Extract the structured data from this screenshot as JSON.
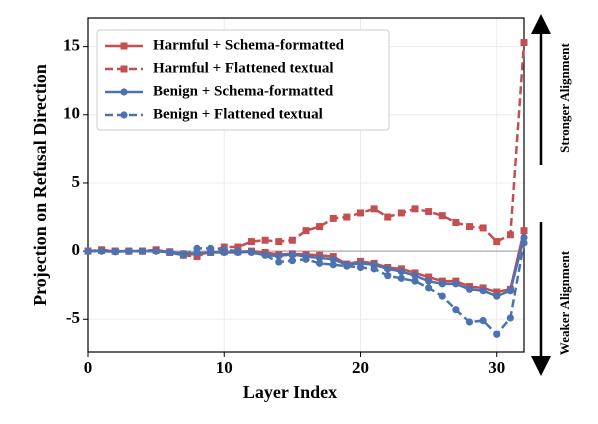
{
  "chart_data": {
    "type": "line",
    "xlabel": "Layer Index",
    "ylabel": "Projection on Refusal Direction",
    "annotations": [
      "Stronger Alignment",
      "Weaker Alignment"
    ],
    "x": [
      0,
      1,
      2,
      3,
      4,
      5,
      6,
      7,
      8,
      9,
      10,
      11,
      12,
      13,
      14,
      15,
      16,
      17,
      18,
      19,
      20,
      21,
      22,
      23,
      24,
      25,
      26,
      27,
      28,
      29,
      30,
      31,
      32
    ],
    "series": [
      {
        "name": "Harmful + Schema-formatted",
        "color": "#c44e52",
        "dashed": false,
        "marker": "square",
        "values": [
          0,
          0.05,
          0,
          0,
          0,
          0.05,
          -0.05,
          -0.2,
          -0.25,
          -0.1,
          -0.05,
          -0.05,
          0,
          -0.1,
          -0.25,
          -0.2,
          -0.25,
          -0.3,
          -0.4,
          -0.95,
          -0.75,
          -0.9,
          -1.2,
          -1.3,
          -1.6,
          -1.9,
          -2.2,
          -2.2,
          -2.6,
          -2.7,
          -3.0,
          -2.8,
          1.5
        ]
      },
      {
        "name": "Harmful + Flattened textual",
        "color": "#c44e52",
        "dashed": true,
        "marker": "square",
        "values": [
          0,
          0.1,
          0,
          0,
          0,
          0.1,
          -0.1,
          -0.3,
          -0.4,
          0,
          0.3,
          0.3,
          0.7,
          0.8,
          0.7,
          0.8,
          1.5,
          1.8,
          2.4,
          2.5,
          2.8,
          3.1,
          2.5,
          2.8,
          3.1,
          2.9,
          2.6,
          2.1,
          1.8,
          1.7,
          0.7,
          1.2,
          15.3
        ]
      },
      {
        "name": "Benign + Schema-formatted",
        "color": "#4c72b0",
        "dashed": false,
        "marker": "circle",
        "values": [
          0,
          0,
          -0.05,
          0,
          0,
          0,
          -0.05,
          -0.2,
          -0.15,
          -0.1,
          -0.1,
          -0.1,
          -0.05,
          -0.3,
          -0.35,
          -0.25,
          -0.4,
          -0.5,
          -0.6,
          -1.0,
          -0.9,
          -1.0,
          -1.3,
          -1.5,
          -1.8,
          -2.2,
          -2.4,
          -2.4,
          -2.8,
          -2.9,
          -3.3,
          -2.9,
          1.0
        ]
      },
      {
        "name": "Benign + Flattened textual",
        "color": "#4c72b0",
        "dashed": true,
        "marker": "circle",
        "values": [
          0,
          0,
          0,
          0,
          0,
          0,
          -0.1,
          -0.3,
          0.2,
          0.2,
          0.1,
          0,
          -0.1,
          -0.3,
          -0.8,
          -0.7,
          -0.6,
          -0.9,
          -1.0,
          -1.1,
          -1.2,
          -1.3,
          -1.8,
          -2.0,
          -2.2,
          -2.7,
          -3.3,
          -4.3,
          -5.2,
          -5.1,
          -6.1,
          -4.9,
          0.6
        ]
      }
    ],
    "xlim": [
      0,
      32
    ],
    "xticks": [
      0,
      10,
      20,
      30
    ],
    "ylim": [
      -7.4,
      17.1
    ],
    "yticks": [
      -5,
      0,
      5,
      10,
      15
    ],
    "grid": true,
    "legend": "upper left"
  }
}
